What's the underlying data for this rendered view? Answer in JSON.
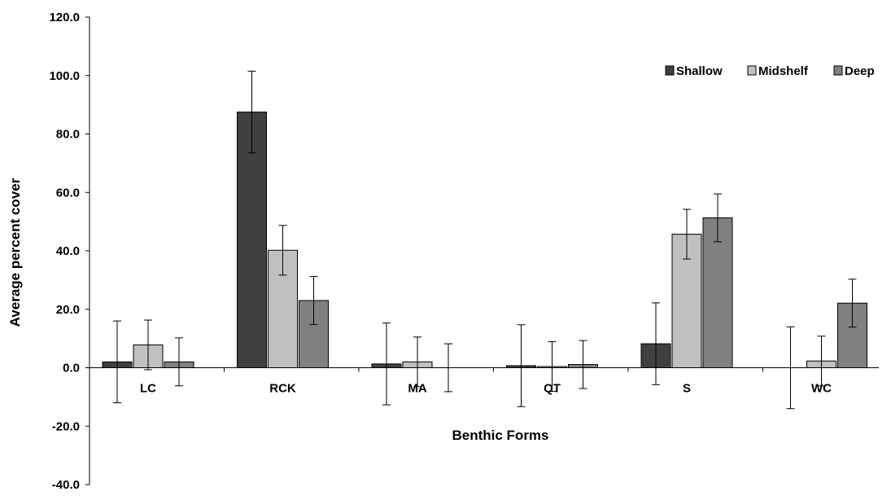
{
  "chart_data": {
    "type": "bar",
    "title": "",
    "xlabel": "Benthic Forms",
    "ylabel": "Average percent cover",
    "ylim": [
      -40,
      120
    ],
    "yticks": [
      -40,
      -20,
      0,
      20,
      40,
      60,
      80,
      100,
      120
    ],
    "ytick_labels": [
      "-40.0",
      "-20.0",
      "0.0",
      "20.0",
      "40.0",
      "60.0",
      "80.0",
      "100.0",
      "120.0"
    ],
    "categories": [
      "LC",
      "RCK",
      "MA",
      "QT",
      "S",
      "WC"
    ],
    "series": [
      {
        "name": "Shallow",
        "color": "#404040",
        "values": [
          2.0,
          87.5,
          1.3,
          0.7,
          8.2,
          0.0
        ],
        "errors": [
          14.0,
          14.0,
          14.0,
          14.0,
          14.0,
          14.0
        ]
      },
      {
        "name": "Midshelf",
        "color": "#c0c0c0",
        "values": [
          7.8,
          40.2,
          2.0,
          0.4,
          45.7,
          2.3
        ],
        "errors": [
          8.5,
          8.5,
          8.5,
          8.5,
          8.5,
          8.5
        ]
      },
      {
        "name": "Deep",
        "color": "#808080",
        "values": [
          2.0,
          23.0,
          0.0,
          1.1,
          51.3,
          22.1
        ],
        "errors": [
          8.2,
          8.2,
          8.2,
          8.2,
          8.2,
          8.2
        ]
      }
    ],
    "grid": false,
    "legend_position": "top-right"
  }
}
